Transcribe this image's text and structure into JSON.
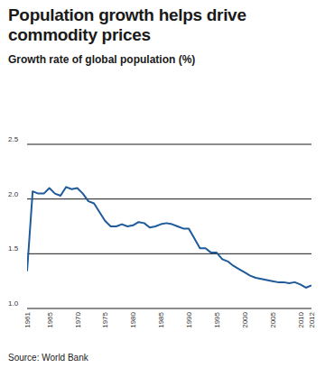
{
  "chart_data": {
    "type": "line",
    "title": "Population growth helps drive commodity prices",
    "subtitle": "Growth rate of global population (%)",
    "source": "Source: World Bank",
    "x": [
      1961,
      1962,
      1963,
      1964,
      1965,
      1966,
      1967,
      1968,
      1969,
      1970,
      1971,
      1972,
      1973,
      1974,
      1975,
      1976,
      1977,
      1978,
      1979,
      1980,
      1981,
      1982,
      1983,
      1984,
      1985,
      1986,
      1987,
      1988,
      1989,
      1990,
      1991,
      1992,
      1993,
      1994,
      1995,
      1996,
      1997,
      1998,
      1999,
      2000,
      2001,
      2002,
      2003,
      2004,
      2005,
      2006,
      2007,
      2008,
      2009,
      2010,
      2011,
      2012
    ],
    "values": [
      1.34,
      2.07,
      2.05,
      2.05,
      2.1,
      2.05,
      2.03,
      2.11,
      2.09,
      2.1,
      2.05,
      1.98,
      1.96,
      1.88,
      1.8,
      1.75,
      1.75,
      1.77,
      1.75,
      1.76,
      1.79,
      1.78,
      1.74,
      1.75,
      1.77,
      1.78,
      1.77,
      1.75,
      1.73,
      1.73,
      1.64,
      1.55,
      1.55,
      1.51,
      1.51,
      1.45,
      1.43,
      1.39,
      1.36,
      1.33,
      1.3,
      1.28,
      1.27,
      1.26,
      1.25,
      1.24,
      1.24,
      1.23,
      1.24,
      1.22,
      1.19,
      1.21
    ],
    "color": "#1f5b9a",
    "xlim": [
      1961,
      2012
    ],
    "xticks": [
      1961,
      1965,
      1970,
      1975,
      1980,
      1985,
      1990,
      1995,
      2000,
      2005,
      2010,
      2012
    ],
    "ylim": [
      1.0,
      2.5
    ],
    "yticks": [
      {
        "value": 1.0,
        "label": "1.0"
      },
      1.5,
      {
        "value": 2.0,
        "label": "2.0"
      },
      2.5
    ],
    "grid": true
  }
}
